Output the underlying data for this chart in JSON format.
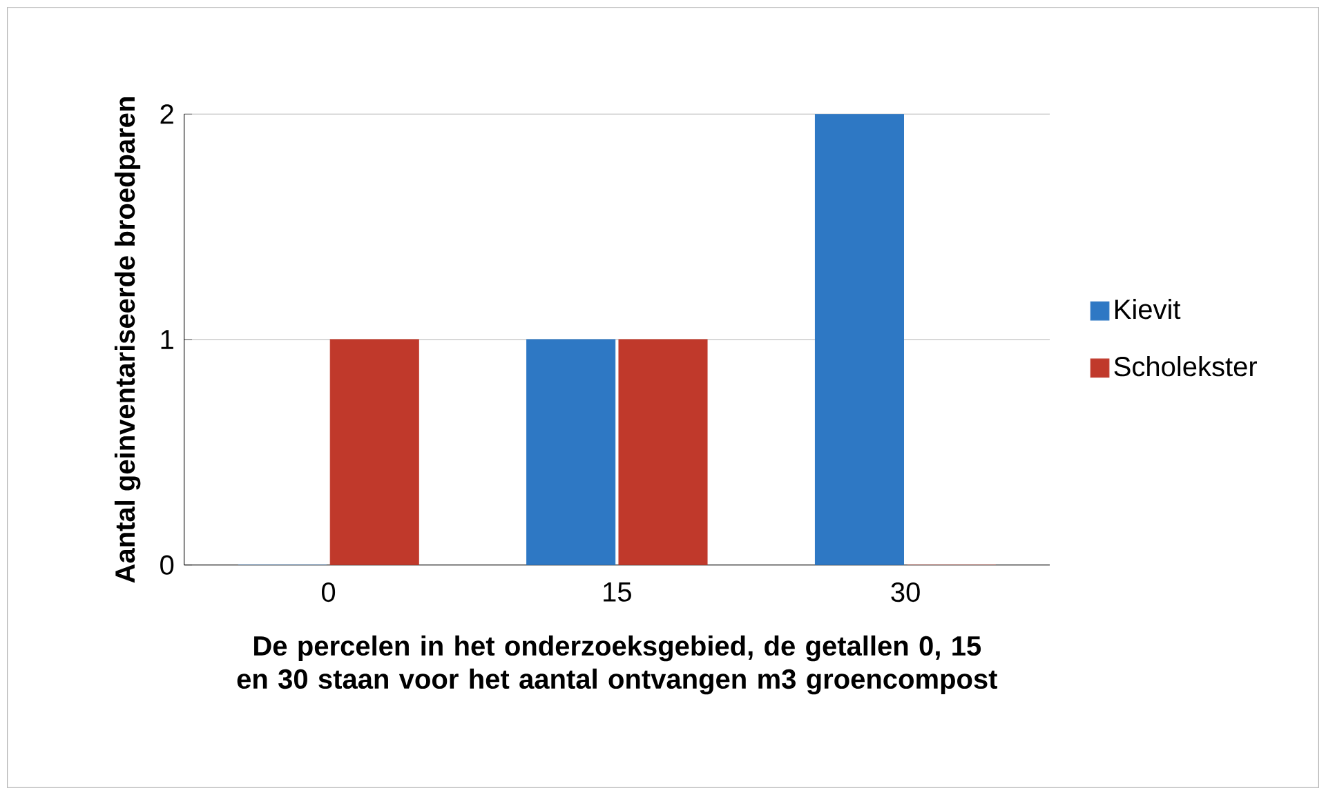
{
  "chart_data": {
    "type": "bar",
    "xlabel": "De percelen in het onderzoeksgebied, de getallen 0, 15 en 30 staan voor het aantal ontvangen m3 groencompost",
    "ylabel": "Aantal geinventariseerde broedparen",
    "categories": [
      "0",
      "15",
      "30"
    ],
    "series": [
      {
        "name": "Kievit",
        "color": "#2e78c4",
        "values": [
          0,
          1,
          2
        ]
      },
      {
        "name": "Scholekster",
        "color": "#c0392b",
        "values": [
          1,
          1,
          0
        ]
      }
    ],
    "ylim": [
      0,
      2
    ],
    "yticks": [
      0,
      1,
      2
    ],
    "grid": "y",
    "legend": "right"
  }
}
